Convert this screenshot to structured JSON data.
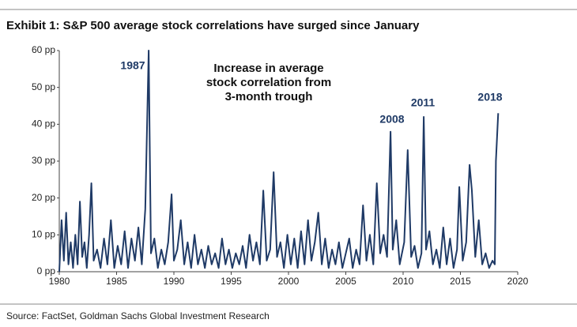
{
  "chart_data": {
    "type": "line",
    "title": "Exhibit 1: S&P 500 average stock correlations have surged since January",
    "source": "Source: FactSet, Goldman Sachs Global Investment Research",
    "note": [
      "Increase in average",
      "stock correlation from",
      "3-month trough"
    ],
    "annotations": [
      "1987",
      "2008",
      "2011",
      "2018"
    ],
    "color": "#1f3a66",
    "xlim": [
      1980,
      2020
    ],
    "xticks": [
      1980,
      1985,
      1990,
      1995,
      2000,
      2005,
      2010,
      2015,
      2020
    ],
    "ylim": [
      0,
      60
    ],
    "yticks": [
      {
        "value": 0,
        "label": "0 pp"
      },
      {
        "value": 10,
        "label": "10 pp"
      },
      {
        "value": 20,
        "label": "20 pp"
      },
      {
        "value": 30,
        "label": "30 pp"
      },
      {
        "value": 40,
        "label": "40 pp"
      },
      {
        "value": 50,
        "label": "50 pp"
      },
      {
        "value": 60,
        "label": "60 pp"
      }
    ],
    "x": [
      1980,
      1980.2,
      1980.4,
      1980.6,
      1980.8,
      1981.0,
      1981.2,
      1981.4,
      1981.6,
      1981.8,
      1982.0,
      1982.2,
      1982.4,
      1982.6,
      1982.8,
      1983.0,
      1983.3,
      1983.6,
      1983.9,
      1984.2,
      1984.5,
      1984.8,
      1985.1,
      1985.4,
      1985.7,
      1986.0,
      1986.3,
      1986.6,
      1986.9,
      1987.2,
      1987.5,
      1987.8,
      1988.0,
      1988.3,
      1988.6,
      1988.9,
      1989.2,
      1989.5,
      1989.8,
      1990.0,
      1990.3,
      1990.6,
      1990.9,
      1991.2,
      1991.5,
      1991.8,
      1992.1,
      1992.4,
      1992.7,
      1993.0,
      1993.3,
      1993.6,
      1993.9,
      1994.2,
      1994.5,
      1994.8,
      1995.1,
      1995.4,
      1995.7,
      1996.0,
      1996.3,
      1996.6,
      1996.9,
      1997.2,
      1997.5,
      1997.8,
      1998.1,
      1998.4,
      1998.7,
      1999.0,
      1999.3,
      1999.6,
      1999.9,
      2000.2,
      2000.5,
      2000.8,
      2001.1,
      2001.4,
      2001.7,
      2002.0,
      2002.3,
      2002.6,
      2002.9,
      2003.2,
      2003.5,
      2003.8,
      2004.1,
      2004.4,
      2004.7,
      2005.0,
      2005.3,
      2005.6,
      2005.9,
      2006.2,
      2006.5,
      2006.8,
      2007.1,
      2007.4,
      2007.7,
      2008.0,
      2008.3,
      2008.6,
      2008.9,
      2009.1,
      2009.4,
      2009.7,
      2010.1,
      2010.4,
      2010.7,
      2011.0,
      2011.3,
      2011.6,
      2011.8,
      2012.0,
      2012.3,
      2012.6,
      2012.9,
      2013.2,
      2013.5,
      2013.8,
      2014.1,
      2014.4,
      2014.7,
      2014.9,
      2015.2,
      2015.5,
      2015.8,
      2016.0,
      2016.3,
      2016.6,
      2016.9,
      2017.2,
      2017.5,
      2017.8,
      2018.0,
      2018.1,
      2018.3
    ],
    "values": [
      0,
      14,
      3,
      16,
      2,
      8,
      1,
      10,
      2,
      19,
      4,
      8,
      1,
      10,
      24,
      3,
      6,
      1,
      9,
      2,
      14,
      1,
      7,
      2,
      11,
      1,
      9,
      3,
      12,
      2,
      17,
      60,
      5,
      9,
      1,
      6,
      2,
      8,
      21,
      3,
      6,
      14,
      2,
      8,
      1,
      10,
      2,
      6,
      1,
      7,
      2,
      5,
      1,
      9,
      2,
      6,
      1,
      5,
      2,
      7,
      1,
      10,
      3,
      8,
      2,
      22,
      3,
      6,
      27,
      4,
      8,
      1,
      10,
      2,
      9,
      1,
      11,
      2,
      14,
      3,
      8,
      16,
      2,
      9,
      1,
      6,
      2,
      8,
      1,
      5,
      9,
      1,
      6,
      2,
      18,
      3,
      10,
      2,
      24,
      5,
      10,
      4,
      38,
      6,
      14,
      2,
      8,
      33,
      4,
      7,
      1,
      5,
      42,
      6,
      11,
      2,
      6,
      1,
      12,
      2,
      9,
      1,
      6,
      23,
      3,
      8,
      29,
      22,
      4,
      14,
      2,
      5,
      1,
      3,
      2,
      30,
      43
    ]
  }
}
